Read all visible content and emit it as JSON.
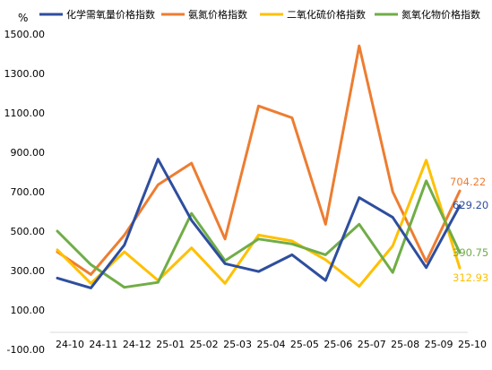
{
  "chart_data": {
    "type": "line",
    "title": "",
    "xlabel": "",
    "ylabel": "%",
    "ylim": [
      -100,
      1500
    ],
    "yticks": [
      -100,
      100,
      300,
      500,
      700,
      900,
      1100,
      1300,
      1500
    ],
    "ytick_labels": [
      "-100.00",
      "100.00",
      "300.00",
      "500.00",
      "700.00",
      "900.00",
      "1100.00",
      "1300.00",
      "1500.00"
    ],
    "categories": [
      "24-10",
      "24-11",
      "24-12",
      "25-01",
      "25-02",
      "25-03",
      "25-04",
      "25-05",
      "25-06",
      "25-07",
      "25-08",
      "25-09",
      "25-10"
    ],
    "grid": false,
    "legend_position": "top",
    "series": [
      {
        "name": "化学需氧量价格指数",
        "color": "#2E4E9E",
        "values": [
          262,
          212,
          430,
          865,
          555,
          335,
          295,
          380,
          250,
          670,
          570,
          315,
          629.2
        ],
        "end_label": "629.20"
      },
      {
        "name": "氨氮价格指数",
        "color": "#ED7D31",
        "values": [
          395,
          280,
          480,
          735,
          845,
          460,
          1135,
          1075,
          535,
          1440,
          700,
          345,
          704.22
        ],
        "end_label": "704.22"
      },
      {
        "name": "二氧化硫价格指数",
        "color": "#FFC000",
        "values": [
          405,
          235,
          395,
          250,
          415,
          235,
          480,
          450,
          355,
          220,
          425,
          860,
          312.93
        ],
        "end_label": "312.93"
      },
      {
        "name": "氮氧化物价格指数",
        "color": "#70AD47",
        "values": [
          500,
          330,
          215,
          240,
          590,
          350,
          460,
          435,
          380,
          535,
          290,
          755,
          390.75
        ],
        "end_label": "390.75"
      }
    ]
  }
}
